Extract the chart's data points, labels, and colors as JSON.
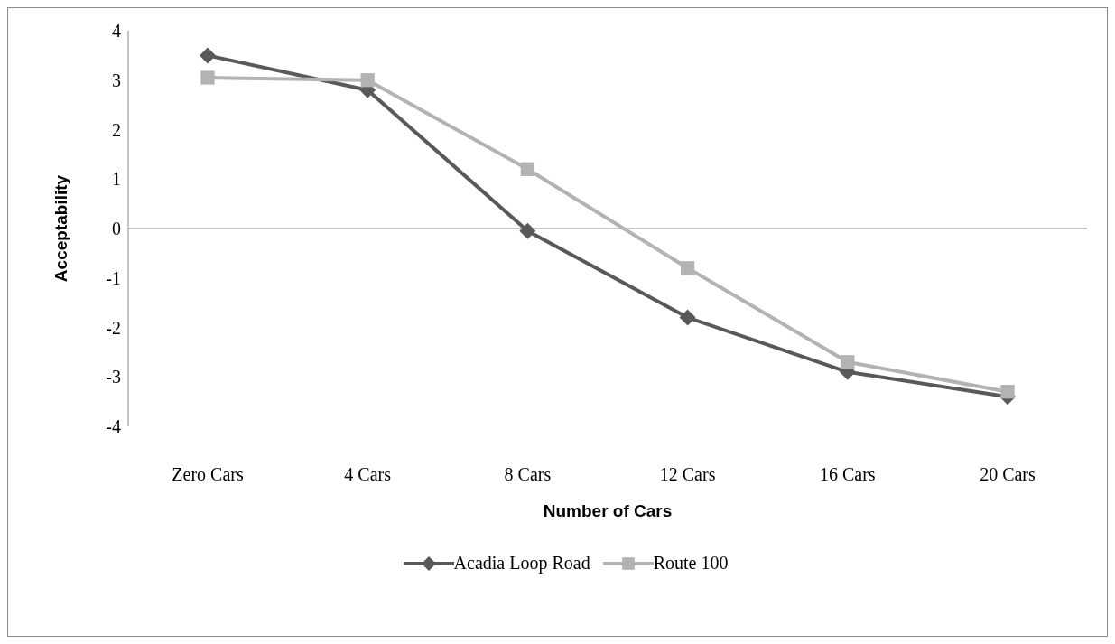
{
  "chart_data": {
    "type": "line",
    "xlabel": "Number of Cars",
    "ylabel": "Acceptability",
    "categories": [
      "Zero Cars",
      "4 Cars",
      "8 Cars",
      "12 Cars",
      "16 Cars",
      "20 Cars"
    ],
    "series": [
      {
        "name": "Acadia Loop Road",
        "color": "#595959",
        "marker": "diamond",
        "values": [
          3.5,
          2.8,
          -0.05,
          -1.8,
          -2.9,
          -3.4
        ]
      },
      {
        "name": "Route 100",
        "color": "#b3b3b3",
        "marker": "square",
        "values": [
          3.05,
          3.0,
          1.2,
          -0.8,
          -2.7,
          -3.3
        ]
      }
    ],
    "ref_lines": [
      {
        "axis": "y",
        "value": 0,
        "color": "#8c8c8c",
        "line_style": "solid"
      }
    ],
    "ylim": [
      -4,
      4
    ],
    "yticks": [
      -4,
      -3,
      -2,
      -1,
      0,
      1,
      2,
      3,
      4
    ],
    "grid": false,
    "legend": "bottom",
    "line_style": "solid"
  }
}
